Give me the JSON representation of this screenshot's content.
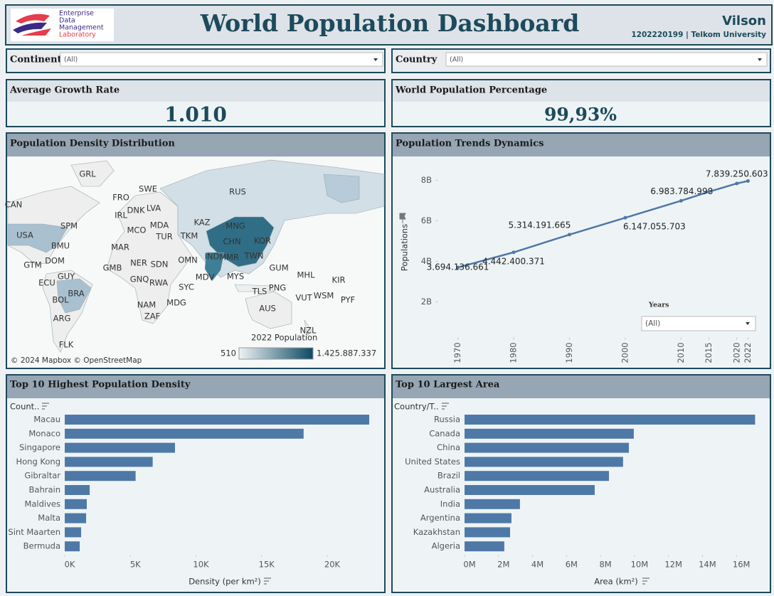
{
  "header": {
    "logo_text": [
      "Enterprise",
      "Data",
      "Management",
      "Laboratory"
    ],
    "title": "World Population Dashboard",
    "author": "Vilson",
    "subtitle": "1202220199 | Telkom University"
  },
  "filters": [
    {
      "label": "Continent",
      "value": "(All)"
    },
    {
      "label": "Country",
      "value": "(All)"
    }
  ],
  "kpis": [
    {
      "title": "Average Growth Rate",
      "value": "1.010"
    },
    {
      "title": "World Population Percentage",
      "value": "99,93%"
    }
  ],
  "chart_data": [
    {
      "type": "map",
      "title": "Population Density Distribution",
      "labels": [
        "GRL",
        "CAN",
        "FRO",
        "SWE",
        "RUS",
        "IRL",
        "DNK",
        "LVA",
        "USA",
        "SPM",
        "MCO",
        "MDA",
        "KAZ",
        "MNG",
        "BMU",
        "TUR",
        "TKM",
        "CHN",
        "KOR",
        "MAR",
        "IND",
        "MMR",
        "TWN",
        "GTM",
        "DOM",
        "GMB",
        "NER",
        "SDN",
        "OMN",
        "GUM",
        "MHL",
        "GUY",
        "GNQ",
        "MDV",
        "MYS",
        "ECU",
        "BRA",
        "RWA",
        "SYC",
        "PNG",
        "KIR",
        "TLS",
        "WSM",
        "VUT",
        "PYF",
        "BOL",
        "NAM",
        "MDG",
        "AUS",
        "ARG",
        "ZAF",
        "NZL",
        "FLK"
      ],
      "attribution": "© 2024 Mapbox © OpenStreetMap",
      "legend_title": "2022 Population",
      "legend_range": [
        510,
        {
          "value": 1425887337,
          "label": "1.425.887.337"
        }
      ],
      "colors": [
        "#eef2f5",
        "#0b4a64"
      ]
    },
    {
      "type": "line",
      "title": "Population Trends Dynamics",
      "x": [
        1970,
        1980,
        1990,
        2000,
        2010,
        2015,
        2020,
        2022
      ],
      "values": [
        3694136661,
        4442400371,
        5314191665,
        6147055703,
        6983784998,
        7430000000,
        7839250603,
        7960000000
      ],
      "value_labels": [
        "3.694.136.661",
        "4.442.400.371",
        "5.314.191.665",
        "6.147.055.703",
        "6.983.784.998",
        null,
        "7.839.250.603",
        null
      ],
      "color": "#4e79a7",
      "xlim": [
        1967,
        2025
      ],
      "xticks": [
        1970,
        1980,
        1990,
        2000,
        2010,
        2015,
        2020,
        2022
      ],
      "ylim": [
        400000000,
        9100000000
      ],
      "yticks": [
        {
          "value": 2000000000,
          "label": "2B"
        },
        {
          "value": 4000000000,
          "label": "4B"
        },
        {
          "value": 6000000000,
          "label": "6B"
        },
        {
          "value": 8000000000,
          "label": "8B"
        }
      ],
      "y_label": "Populations",
      "filter_label": "Years",
      "filter_value": "(All)"
    },
    {
      "type": "hbar",
      "title": "Top 10 Highest Population Density",
      "category_header": "Count..",
      "categories": [
        "Macau",
        "Monaco",
        "Singapore",
        "Hong Kong",
        "Gibraltar",
        "Bahrain",
        "Maldives",
        "Malta",
        "Sint Maarten",
        "Bermuda"
      ],
      "values": [
        23200,
        18200,
        8400,
        6700,
        5400,
        1900,
        1680,
        1630,
        1250,
        1140
      ],
      "color": "#4e79a7",
      "xlim": [
        0,
        24000
      ],
      "xticks": [
        {
          "value": 0,
          "label": "0K"
        },
        {
          "value": 5000,
          "label": "5K"
        },
        {
          "value": 10000,
          "label": "10K"
        },
        {
          "value": 15000,
          "label": "15K"
        },
        {
          "value": 20000,
          "label": "20K"
        }
      ],
      "x_label": "Density (per km²)"
    },
    {
      "type": "hbar",
      "title": "Top 10 Largest Area",
      "category_header": "Country/T..",
      "categories": [
        "Russia",
        "Canada",
        "China",
        "United States",
        "Brazil",
        "Australia",
        "India",
        "Argentina",
        "Kazakhstan",
        "Algeria"
      ],
      "values": [
        17100000,
        9960000,
        9670000,
        9330000,
        8500000,
        7660000,
        3260000,
        2760000,
        2680000,
        2340000
      ],
      "color": "#4e79a7",
      "xlim": [
        0,
        17500000
      ],
      "xticks": [
        {
          "value": 0,
          "label": "0M"
        },
        {
          "value": 2000000,
          "label": "2M"
        },
        {
          "value": 4000000,
          "label": "4M"
        },
        {
          "value": 6000000,
          "label": "6M"
        },
        {
          "value": 8000000,
          "label": "8M"
        },
        {
          "value": 10000000,
          "label": "10M"
        },
        {
          "value": 12000000,
          "label": "12M"
        },
        {
          "value": 14000000,
          "label": "14M"
        },
        {
          "value": 16000000,
          "label": "16M"
        }
      ],
      "x_label": "Area (km²)"
    }
  ]
}
